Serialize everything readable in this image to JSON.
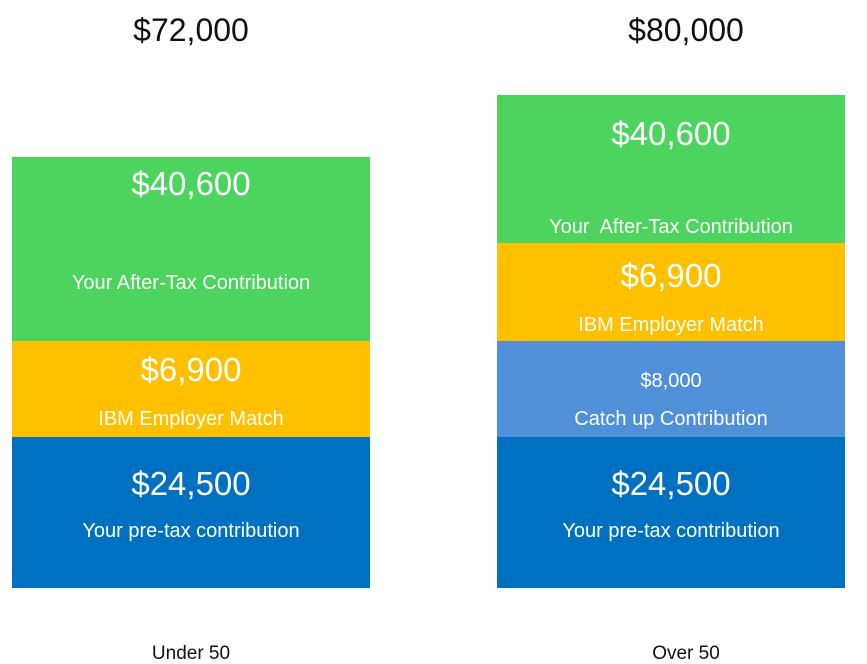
{
  "columns": [
    {
      "total": "$72,000",
      "label": "Under 50",
      "segments": [
        {
          "amount": "$40,600",
          "label": "Your After-Tax Contribution"
        },
        {
          "amount": "$6,900",
          "label": "IBM Employer Match"
        },
        {
          "amount": "$24,500",
          "label": "Your pre-tax contribution"
        }
      ]
    },
    {
      "total": "$80,000",
      "label": "Over 50",
      "segments": [
        {
          "amount": "$40,600",
          "label": "Your  After-Tax Contribution"
        },
        {
          "amount": "$6,900",
          "label": "IBM Employer Match"
        },
        {
          "amount": "$8,000",
          "label": "Catch up Contribution"
        },
        {
          "amount": "$24,500",
          "label": "Your pre-tax contribution"
        }
      ]
    }
  ]
}
